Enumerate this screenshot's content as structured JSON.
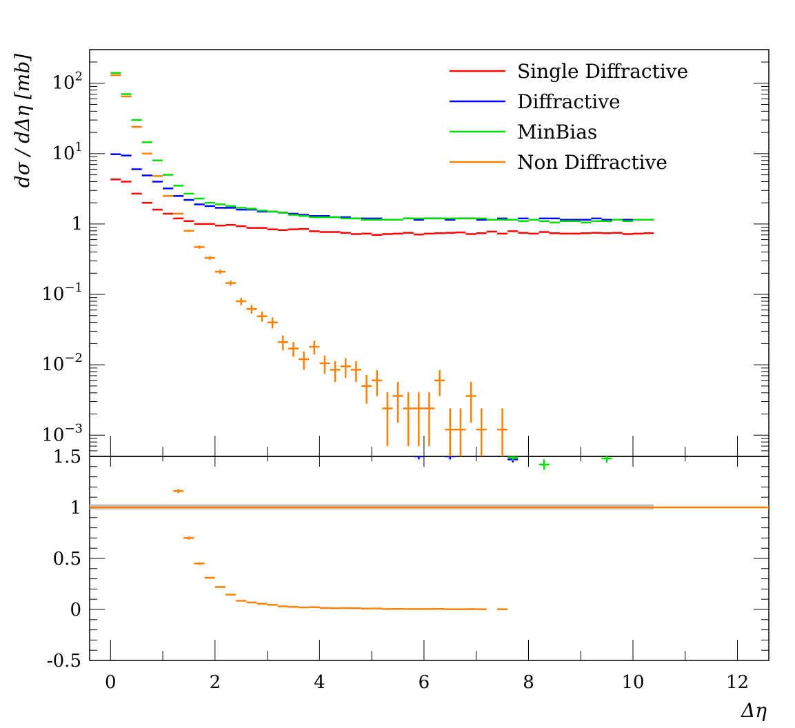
{
  "chart_data": [
    {
      "type": "line",
      "panel": "main",
      "ylabel": "dσ / dΔη [mb]",
      "yscale": "log",
      "ylim": [
        0.0005,
        300
      ],
      "xlim": [
        -0.4,
        12.6
      ],
      "yticks": [
        {
          "value": 100,
          "label": "10",
          "exp": "2"
        },
        {
          "value": 10,
          "label": "10",
          "exp": "1"
        },
        {
          "value": 1,
          "label": "1",
          "exp": ""
        },
        {
          "value": 0.1,
          "label": "10",
          "exp": "−1"
        },
        {
          "value": 0.01,
          "label": "10",
          "exp": "−2"
        },
        {
          "value": 0.001,
          "label": "10",
          "exp": "−3"
        }
      ],
      "legend_position": "top-right",
      "series": [
        {
          "name": "Single Diffractive",
          "color": "#ff0000",
          "x": [
            0.1,
            0.3,
            0.5,
            0.7,
            0.9,
            1.1,
            1.3,
            1.5,
            1.7,
            1.9,
            2.1,
            2.3,
            2.5,
            2.7,
            2.9,
            3.1,
            3.3,
            3.5,
            3.7,
            3.9,
            4.1,
            4.3,
            4.5,
            4.7,
            4.9,
            5.1,
            5.3,
            5.5,
            5.7,
            5.9,
            6.1,
            6.3,
            6.5,
            6.7,
            6.9,
            7.1,
            7.3,
            7.5,
            7.7,
            7.9,
            8.1,
            8.3,
            8.5,
            8.7,
            8.9,
            9.1,
            9.3,
            9.5,
            9.7,
            9.9,
            10.1,
            10.3
          ],
          "y": [
            4.3,
            4.0,
            2.7,
            2.0,
            1.6,
            1.4,
            1.2,
            1.1,
            1.0,
            1.0,
            0.95,
            0.97,
            0.93,
            0.88,
            0.88,
            0.84,
            0.82,
            0.84,
            0.85,
            0.79,
            0.77,
            0.77,
            0.75,
            0.72,
            0.73,
            0.7,
            0.72,
            0.73,
            0.75,
            0.71,
            0.73,
            0.74,
            0.75,
            0.76,
            0.72,
            0.74,
            0.78,
            0.73,
            0.79,
            0.75,
            0.73,
            0.77,
            0.74,
            0.73,
            0.73,
            0.74,
            0.75,
            0.74,
            0.75,
            0.72,
            0.73,
            0.74
          ]
        },
        {
          "name": "Diffractive",
          "color": "#0000ff",
          "x": [
            0.1,
            0.3,
            0.5,
            0.7,
            0.9,
            1.1,
            1.3,
            1.5,
            1.7,
            1.9,
            2.1,
            2.3,
            2.5,
            2.7,
            2.9,
            3.1,
            3.3,
            3.5,
            3.7,
            3.9,
            4.1,
            4.3,
            4.5,
            4.7,
            4.9,
            5.1,
            5.3,
            5.5,
            5.7,
            5.9,
            6.1,
            6.3,
            6.5,
            6.7,
            6.9,
            7.1,
            7.3,
            7.5,
            7.7,
            7.9,
            8.1,
            8.3,
            8.5,
            8.7,
            8.9,
            9.1,
            9.3,
            9.5,
            9.7,
            9.9,
            10.1,
            10.3
          ],
          "y": [
            9.8,
            9.4,
            6.0,
            4.9,
            4.0,
            3.2,
            2.5,
            2.2,
            1.9,
            1.8,
            1.7,
            1.7,
            1.6,
            1.6,
            1.5,
            1.5,
            1.45,
            1.4,
            1.35,
            1.3,
            1.3,
            1.25,
            1.25,
            1.2,
            1.2,
            1.2,
            1.15,
            1.15,
            1.2,
            1.15,
            1.2,
            1.2,
            1.15,
            1.2,
            1.2,
            1.15,
            1.15,
            1.2,
            1.15,
            1.2,
            1.15,
            1.2,
            1.2,
            1.15,
            1.15,
            1.15,
            1.2,
            1.15,
            1.15,
            1.15,
            1.15,
            1.15
          ]
        },
        {
          "name": "MinBias",
          "color": "#00e000",
          "x": [
            0.1,
            0.3,
            0.5,
            0.7,
            0.9,
            1.1,
            1.3,
            1.5,
            1.7,
            1.9,
            2.1,
            2.3,
            2.5,
            2.7,
            2.9,
            3.1,
            3.3,
            3.5,
            3.7,
            3.9,
            4.1,
            4.3,
            4.5,
            4.7,
            4.9,
            5.1,
            5.3,
            5.5,
            5.7,
            5.9,
            6.1,
            6.3,
            6.5,
            6.7,
            6.9,
            7.1,
            7.3,
            7.5,
            7.7,
            7.9,
            8.1,
            8.3,
            8.5,
            8.7,
            8.9,
            9.1,
            9.3,
            9.5,
            9.7,
            9.9,
            10.1,
            10.3
          ],
          "y": [
            140,
            70,
            30,
            14.5,
            8.0,
            5.0,
            3.5,
            2.7,
            2.3,
            2.0,
            1.9,
            1.8,
            1.7,
            1.65,
            1.55,
            1.5,
            1.45,
            1.35,
            1.3,
            1.25,
            1.25,
            1.25,
            1.2,
            1.2,
            1.15,
            1.15,
            1.15,
            1.15,
            1.2,
            1.2,
            1.2,
            1.2,
            1.2,
            1.2,
            1.2,
            1.2,
            1.15,
            1.15,
            1.15,
            1.1,
            1.15,
            1.1,
            1.05,
            1.1,
            1.1,
            1.05,
            1.1,
            1.1,
            1.15,
            1.1,
            1.15,
            1.15
          ]
        },
        {
          "name": "Non Diffractive",
          "color": "#ff8000",
          "x": [
            0.1,
            0.3,
            0.5,
            0.7,
            0.9,
            1.1,
            1.3,
            1.5,
            1.7,
            1.9,
            2.1,
            2.3,
            2.5,
            2.7,
            2.9,
            3.1,
            3.3,
            3.5,
            3.7,
            3.9,
            4.1,
            4.3,
            4.5,
            4.7,
            4.9,
            5.1,
            5.3,
            5.5,
            5.7,
            5.9,
            6.1,
            6.3,
            6.5,
            6.7,
            6.9,
            7.1,
            7.5
          ],
          "y": [
            130,
            65,
            24,
            10,
            4.8,
            2.5,
            1.4,
            0.8,
            0.47,
            0.33,
            0.21,
            0.145,
            0.08,
            0.062,
            0.049,
            0.04,
            0.021,
            0.017,
            0.012,
            0.018,
            0.0105,
            0.0085,
            0.0095,
            0.0085,
            0.005,
            0.006,
            0.0024,
            0.0036,
            0.0024,
            0.0024,
            0.0024,
            0.006,
            0.0012,
            0.0012,
            0.0036,
            0.0012,
            0.0012
          ],
          "yerr": [
            1.0,
            0.6,
            0.3,
            0.15,
            0.08,
            0.05,
            0.04,
            0.03,
            0.025,
            0.02,
            0.015,
            0.012,
            0.01,
            0.009,
            0.008,
            0.007,
            0.005,
            0.004,
            0.0035,
            0.004,
            0.003,
            0.0028,
            0.003,
            0.0028,
            0.0022,
            0.0024,
            0.0017,
            0.0021,
            0.0017,
            0.0017,
            0.0017,
            0.0024,
            0.0012,
            0.0012,
            0.0021,
            0.0012,
            0.0012
          ]
        }
      ]
    },
    {
      "type": "line",
      "panel": "ratio",
      "xlabel": "Δη",
      "ylim": [
        -0.5,
        1.5
      ],
      "xlim": [
        -0.4,
        12.6
      ],
      "yticks": [
        {
          "value": 1.5,
          "label": "1.5"
        },
        {
          "value": 1,
          "label": "1"
        },
        {
          "value": 0.5,
          "label": "0.5"
        },
        {
          "value": 0,
          "label": "0"
        },
        {
          "value": -0.5,
          "label": "-0.5"
        }
      ],
      "xticks": [
        {
          "value": 0,
          "label": "0"
        },
        {
          "value": 2,
          "label": "2"
        },
        {
          "value": 4,
          "label": "4"
        },
        {
          "value": 6,
          "label": "6"
        },
        {
          "value": 8,
          "label": "8"
        },
        {
          "value": 10,
          "label": "10"
        },
        {
          "value": 12,
          "label": "12"
        }
      ],
      "reference_band": {
        "x": [
          -0.4,
          10.4
        ],
        "ylow": 0.98,
        "yhigh": 1.03,
        "color": "#c0c0c0"
      },
      "reference_line": {
        "y": 1,
        "x": [
          -0.4,
          12.6
        ],
        "color": "#ff8000"
      },
      "series": [
        {
          "name": "Non Diffractive",
          "color": "#ff8000",
          "x": [
            1.3,
            1.5,
            1.7,
            1.9,
            2.1,
            2.3,
            2.5,
            2.7,
            2.9,
            3.1,
            3.3,
            3.5,
            3.7,
            3.9,
            4.1,
            4.3,
            4.5,
            4.7,
            4.9,
            5.1,
            5.3,
            5.5,
            5.7,
            5.9,
            6.1,
            6.3,
            6.5,
            6.7,
            6.9,
            7.1,
            7.5
          ],
          "y": [
            1.16,
            0.7,
            0.45,
            0.31,
            0.22,
            0.145,
            0.085,
            0.068,
            0.055,
            0.045,
            0.03,
            0.025,
            0.02,
            0.022,
            0.014,
            0.012,
            0.013,
            0.012,
            0.008,
            0.009,
            0.004,
            0.005,
            0.004,
            0.004,
            0.004,
            0.005,
            0.002,
            0.002,
            0.003,
            0.002,
            0.002
          ],
          "yerr": [
            0.02,
            0.015,
            0.012,
            0.01,
            0.008,
            0.006,
            0.005,
            0.004,
            0.004,
            0.004,
            0.003,
            0.003,
            0.003,
            0.003,
            0.002,
            0.002,
            0.002,
            0.002,
            0.002,
            0.002,
            0.001,
            0.001,
            0.001,
            0.001,
            0.001,
            0.001,
            0.001,
            0.001,
            0.001,
            0.001,
            0.001
          ]
        },
        {
          "name": "Diffractive",
          "color": "#0000ff",
          "x": [
            5.9,
            6.5,
            7.7
          ],
          "y": [
            1.5,
            1.5,
            1.47
          ],
          "yerr": [
            0.03,
            0.03,
            0.03
          ]
        },
        {
          "name": "MinBias",
          "color": "#00e000",
          "x": [
            7.7,
            8.3,
            9.5
          ],
          "y": [
            1.49,
            1.42,
            1.48
          ],
          "yerr": [
            0.03,
            0.05,
            0.04
          ]
        }
      ]
    }
  ]
}
